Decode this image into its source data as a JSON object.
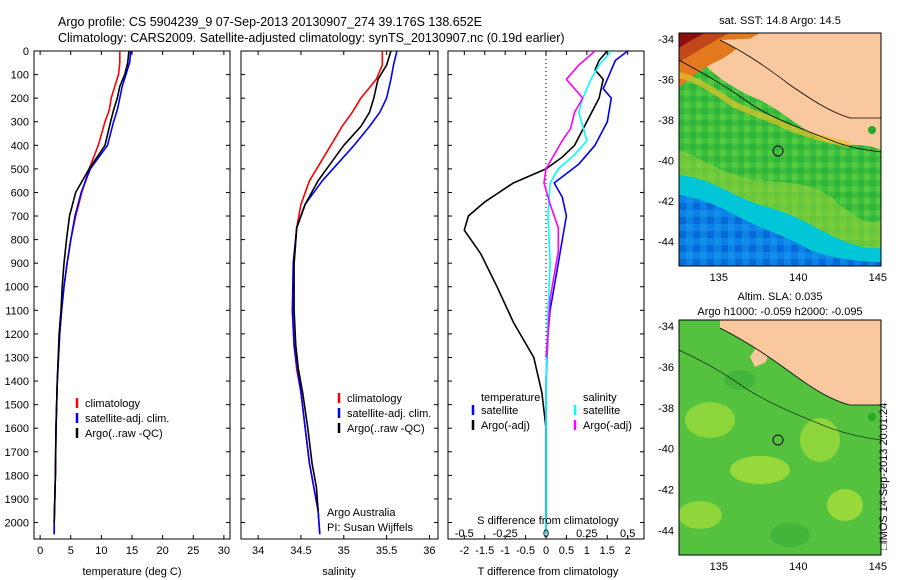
{
  "header": {
    "line1": "Argo profile: CS 5904239_9 07-Sep-2013 20130907_274 39.176S 138.652E",
    "line2": "Climatology: CARS2009. Satellite-adjusted climatology: synTS_20130907.nc (0.19d earlier)"
  },
  "colors": {
    "climatology": "#ff0000",
    "satellite": "#0000ff",
    "argo": "#000000",
    "salinity_sat": "#00ffff",
    "salinity_argo": "#ff00ff",
    "land": "#f9c89f"
  },
  "chart_data": [
    {
      "type": "line",
      "id": "temperature-profile",
      "xlabel": "temperature (deg C)",
      "xlim": [
        -1,
        31
      ],
      "xticks": [
        0,
        5,
        10,
        15,
        20,
        25,
        30
      ],
      "ylim": [
        2070,
        0
      ],
      "yticks": [
        0,
        100,
        200,
        300,
        400,
        500,
        600,
        700,
        800,
        900,
        1000,
        1100,
        1200,
        1300,
        1400,
        1500,
        1600,
        1700,
        1800,
        1900,
        2000
      ],
      "legend": [
        "climatology",
        "satellite-adj. clim.",
        "Argo(..raw -QC)"
      ],
      "series": [
        {
          "name": "climatology",
          "color": "#ff0000",
          "x": [
            13.0,
            13.0,
            12.8,
            12.2,
            11.6,
            11.3,
            10.6,
            9.5,
            8.0,
            6.8,
            5.8,
            5.0,
            4.4,
            3.9,
            3.5,
            3.2,
            2.8,
            2.6,
            2.5,
            2.4,
            2.3,
            2.3
          ],
          "y": [
            0,
            50,
            100,
            150,
            200,
            250,
            300,
            400,
            500,
            600,
            700,
            800,
            900,
            1000,
            1100,
            1200,
            1400,
            1600,
            1800,
            1900,
            2000,
            2050
          ]
        },
        {
          "name": "satellite-adj. clim.",
          "color": "#0000ff",
          "x": [
            14.8,
            14.6,
            14.0,
            13.4,
            13.0,
            12.6,
            12.0,
            11.0,
            8.2,
            6.7,
            5.7,
            5.0,
            4.4,
            3.9,
            3.5,
            3.2,
            2.8,
            2.6,
            2.5,
            2.4,
            2.3,
            2.3
          ],
          "y": [
            0,
            50,
            100,
            150,
            200,
            250,
            300,
            400,
            500,
            600,
            700,
            800,
            900,
            1000,
            1100,
            1200,
            1400,
            1600,
            1800,
            1900,
            2000,
            2050
          ]
        },
        {
          "name": "Argo(..raw -QC)",
          "color": "#000000",
          "x": [
            14.5,
            14.3,
            13.8,
            13.0,
            12.6,
            12.0,
            11.5,
            10.6,
            8.0,
            5.8,
            4.8,
            4.3,
            3.9,
            3.6,
            3.4,
            3.1,
            2.8,
            2.6,
            2.5,
            2.4,
            2.3
          ],
          "y": [
            0,
            50,
            100,
            150,
            200,
            250,
            300,
            400,
            500,
            600,
            700,
            800,
            900,
            1000,
            1100,
            1200,
            1400,
            1600,
            1800,
            1900,
            2000
          ]
        }
      ]
    },
    {
      "type": "line",
      "id": "salinity-profile",
      "xlabel": "salinity",
      "xlim": [
        33.8,
        36.1
      ],
      "xticks": [
        34,
        34.5,
        35,
        35.5,
        36
      ],
      "xticklabels": [
        "34",
        "34.5",
        "35",
        "35.5",
        "36"
      ],
      "ylim": [
        2070,
        0
      ],
      "legend": [
        "climatology",
        "satellite-adj. clim.",
        "Argo(..raw -QC)"
      ],
      "annotation": [
        "Argo Australia",
        "PI: Susan Wijffels"
      ],
      "series": [
        {
          "name": "climatology",
          "color": "#ff0000",
          "x": [
            35.45,
            35.45,
            35.38,
            35.2,
            35.1,
            34.98,
            34.85,
            34.6,
            34.5,
            34.45,
            34.42,
            34.4,
            34.42,
            34.45,
            34.5,
            34.55,
            34.6,
            34.65,
            34.7,
            34.72
          ],
          "y": [
            0,
            60,
            120,
            200,
            260,
            320,
            400,
            550,
            650,
            750,
            900,
            1100,
            1250,
            1350,
            1450,
            1600,
            1750,
            1850,
            1950,
            2050
          ]
        },
        {
          "name": "satellite-adj. clim.",
          "color": "#0000ff",
          "x": [
            35.62,
            35.58,
            35.55,
            35.5,
            35.42,
            35.3,
            35.12,
            34.75,
            34.55,
            34.45,
            34.41,
            34.4,
            34.42,
            34.46,
            34.5,
            34.55,
            34.6,
            34.65,
            34.7,
            34.72
          ],
          "y": [
            0,
            60,
            120,
            200,
            260,
            320,
            400,
            550,
            650,
            750,
            900,
            1100,
            1250,
            1350,
            1450,
            1600,
            1750,
            1850,
            1950,
            2050
          ]
        },
        {
          "name": "Argo(..raw -QC)",
          "color": "#000000",
          "x": [
            35.55,
            35.5,
            35.4,
            35.35,
            35.3,
            35.2,
            35.0,
            34.7,
            34.55,
            34.45,
            34.42,
            34.42,
            34.44,
            34.47,
            34.52,
            34.58,
            34.63,
            34.68,
            34.7
          ],
          "y": [
            0,
            60,
            120,
            200,
            260,
            320,
            400,
            550,
            650,
            750,
            900,
            1100,
            1250,
            1350,
            1450,
            1600,
            1750,
            1850,
            1950
          ]
        }
      ]
    },
    {
      "type": "line",
      "id": "difference-profile",
      "xlabel": "T difference from climatology",
      "xlim": [
        -2.4,
        2.4
      ],
      "xticks": [
        -2,
        -1.5,
        -1,
        -0.5,
        0,
        0.5,
        1,
        1.5,
        2
      ],
      "xticklabels": [
        "-2",
        "-1.5",
        "-1",
        "-0.5",
        "0",
        "0.5",
        "1",
        "1.5",
        "2"
      ],
      "top_xlabel": "S difference from climatology",
      "top_xticks": [
        -0.5,
        -0.25,
        0,
        0.25,
        0.5
      ],
      "top_xticklabels": [
        "-0.5",
        "-0.25",
        "0",
        "0.25",
        "0.5"
      ],
      "ylim": [
        2070,
        0
      ],
      "legend": {
        "temperature_title": "temperature",
        "salinity_title": "salinity",
        "temperature": [
          "satellite",
          "Argo(-adj)"
        ],
        "salinity": [
          "satellite",
          "Argo(-adj)"
        ]
      },
      "series": [
        {
          "name": "T satellite",
          "color": "#0000ff",
          "x": [
            2.0,
            1.7,
            1.6,
            1.5,
            1.4,
            1.6,
            1.5,
            1.2,
            0.8,
            0.5,
            0.2,
            0.4,
            0.5,
            0.4,
            0.3,
            0.2,
            0.1,
            0.05,
            0.0,
            0.0,
            0.0,
            0.0,
            0.0
          ],
          "y": [
            0,
            40,
            80,
            120,
            160,
            200,
            300,
            400,
            480,
            520,
            560,
            620,
            700,
            800,
            900,
            1000,
            1100,
            1200,
            1400,
            1600,
            1800,
            1950,
            2050
          ]
        },
        {
          "name": "T Argo(-adj)",
          "color": "#000000",
          "x": [
            1.5,
            1.3,
            1.2,
            1.4,
            1.3,
            1.0,
            0.7,
            0.4,
            0.0,
            -0.8,
            -1.5,
            -1.9,
            -2.0,
            -1.6,
            -1.2,
            -0.8,
            -0.3,
            -0.1,
            0.0,
            0.0
          ],
          "y": [
            0,
            40,
            80,
            120,
            200,
            300,
            400,
            450,
            500,
            560,
            640,
            700,
            760,
            860,
            1000,
            1150,
            1300,
            1450,
            1600,
            2000
          ]
        },
        {
          "name": "S satellite",
          "color": "#00ffff",
          "x": [
            1.6,
            1.3,
            1.1,
            0.9,
            0.8,
            0.9,
            1.0,
            0.7,
            0.3,
            0.1,
            0.05,
            0.1,
            0.05,
            0.0,
            0.0,
            0.0
          ],
          "y": [
            0,
            60,
            120,
            200,
            260,
            320,
            380,
            440,
            500,
            560,
            700,
            900,
            1100,
            1400,
            1800,
            2050
          ]
        },
        {
          "name": "S Argo(-adj)",
          "color": "#ff00ff",
          "x": [
            1.2,
            0.8,
            0.5,
            0.9,
            0.7,
            0.6,
            0.4,
            0.2,
            0.0,
            -0.05,
            0.1,
            0.3,
            0.3,
            0.2,
            0.1,
            0.05,
            0.0
          ],
          "y": [
            0,
            60,
            120,
            200,
            260,
            330,
            380,
            440,
            500,
            560,
            650,
            750,
            850,
            950,
            1050,
            1200,
            1300
          ]
        }
      ]
    },
    {
      "type": "heatmap",
      "id": "sst-map",
      "title": "sat. SST: 14.8 Argo: 14.5",
      "xticks": [
        135,
        140,
        145
      ],
      "yticks": [
        -34,
        -36,
        -38,
        -40,
        -42,
        -44
      ],
      "xlim": [
        132.5,
        145.2
      ],
      "ylim": [
        -45.2,
        -33.7
      ],
      "argo_position": [
        138.652,
        -39.176
      ]
    },
    {
      "type": "heatmap",
      "id": "sla-map",
      "title_line1": "Altim. SLA: 0.035",
      "title_line2": "Argo h1000: -0.059 h2000: -0.095",
      "xticks": [
        135,
        140,
        145
      ],
      "yticks": [
        -34,
        -36,
        -38,
        -40,
        -42,
        -44
      ],
      "xlim": [
        132.5,
        145.2
      ],
      "ylim": [
        -45.2,
        -33.7
      ],
      "argo_position": [
        138.652,
        -39.176
      ]
    }
  ],
  "stamp": "□IMOS 14-Sep-2013 20:01:24"
}
